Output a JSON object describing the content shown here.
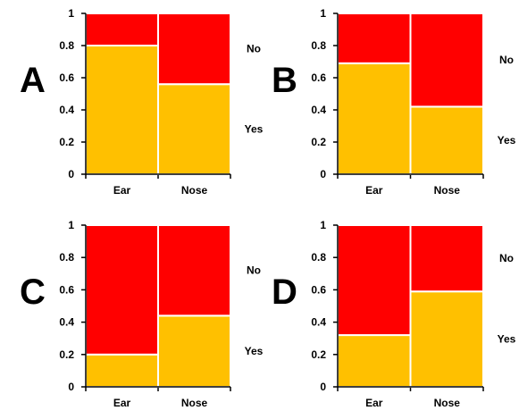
{
  "chart_data": [
    {
      "type": "bar",
      "stacked": true,
      "panel_label": "A",
      "categories": [
        "Ear",
        "Nose"
      ],
      "series": [
        {
          "name": "Yes",
          "values": [
            0.8,
            0.56
          ],
          "color": "#FFC000"
        },
        {
          "name": "No",
          "values": [
            0.2,
            0.44
          ],
          "color": "#FF0000"
        }
      ],
      "ylim": [
        0,
        1
      ],
      "yticks": [
        "0",
        "0.2",
        "0.4",
        "0.6",
        "0.8",
        "1"
      ],
      "grid": false,
      "legend": "right"
    },
    {
      "type": "bar",
      "stacked": true,
      "panel_label": "B",
      "categories": [
        "Ear",
        "Nose"
      ],
      "series": [
        {
          "name": "Yes",
          "values": [
            0.69,
            0.42
          ],
          "color": "#FFC000"
        },
        {
          "name": "No",
          "values": [
            0.31,
            0.58
          ],
          "color": "#FF0000"
        }
      ],
      "ylim": [
        0,
        1
      ],
      "yticks": [
        "0",
        "0.2",
        "0.4",
        "0.6",
        "0.8",
        "1"
      ],
      "grid": false,
      "legend": "right"
    },
    {
      "type": "bar",
      "stacked": true,
      "panel_label": "C",
      "categories": [
        "Ear",
        "Nose"
      ],
      "series": [
        {
          "name": "Yes",
          "values": [
            0.2,
            0.44
          ],
          "color": "#FFC000"
        },
        {
          "name": "No",
          "values": [
            0.8,
            0.56
          ],
          "color": "#FF0000"
        }
      ],
      "ylim": [
        0,
        1
      ],
      "yticks": [
        "0",
        "0.2",
        "0.4",
        "0.6",
        "0.8",
        "1"
      ],
      "grid": false,
      "legend": "right"
    },
    {
      "type": "bar",
      "stacked": true,
      "panel_label": "D",
      "categories": [
        "Ear",
        "Nose"
      ],
      "series": [
        {
          "name": "Yes",
          "values": [
            0.32,
            0.59
          ],
          "color": "#FFC000"
        },
        {
          "name": "No",
          "values": [
            0.68,
            0.41
          ],
          "color": "#FF0000"
        }
      ],
      "ylim": [
        0,
        1
      ],
      "yticks": [
        "0",
        "0.2",
        "0.4",
        "0.6",
        "0.8",
        "1"
      ],
      "grid": false,
      "legend": "right"
    }
  ]
}
